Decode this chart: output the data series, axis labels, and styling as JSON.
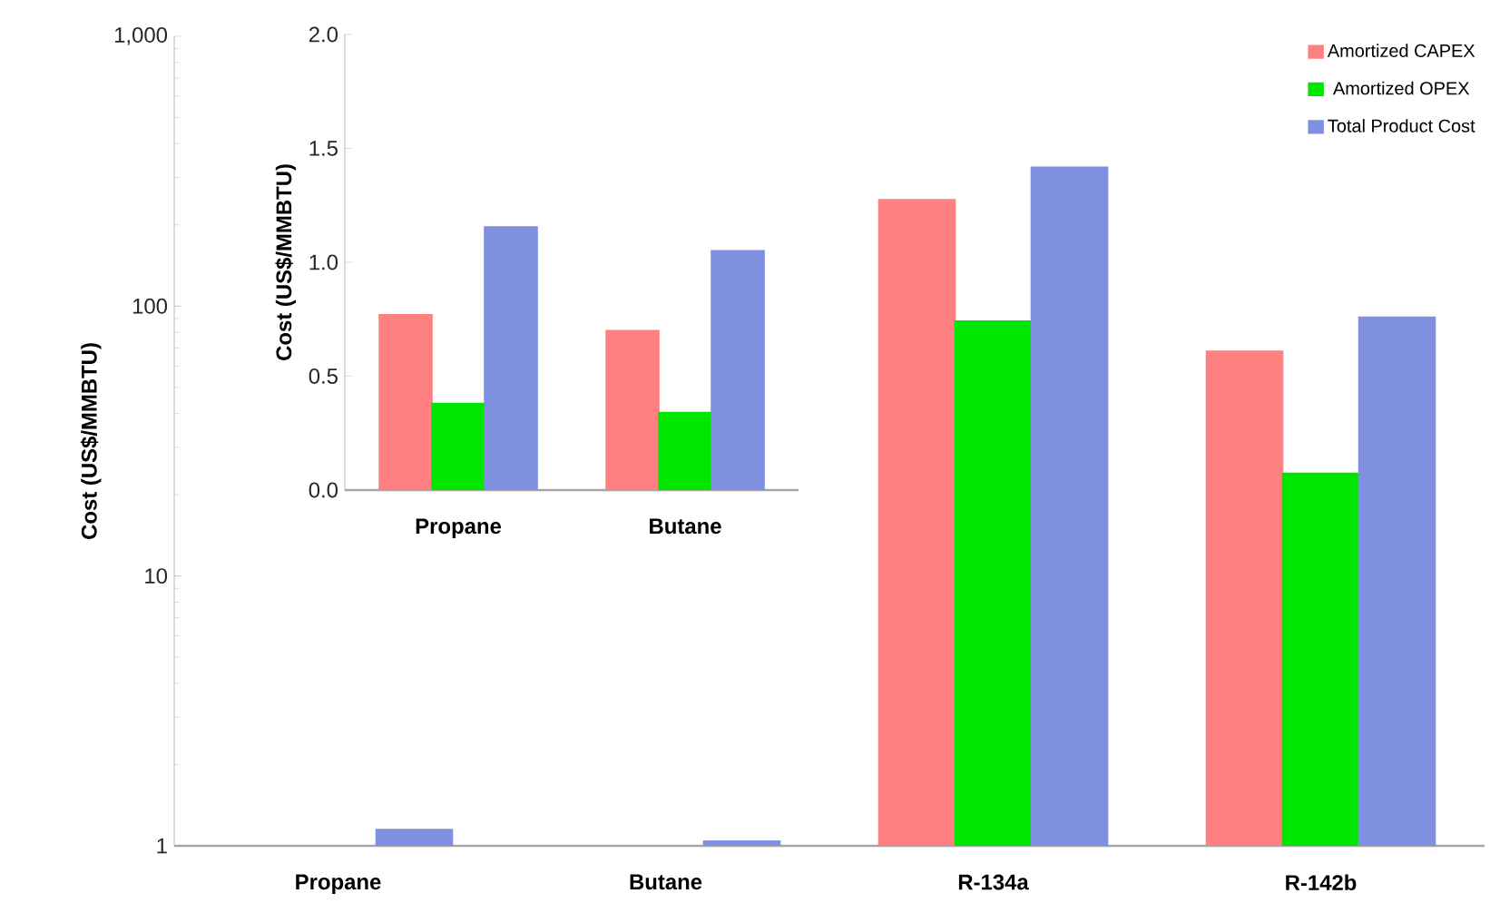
{
  "chart_data": [
    {
      "type": "bar",
      "ylabel": "Cost (US$/MMBTU)",
      "log": "y",
      "legend": "top right",
      "grid": false,
      "categories": [
        "Propane",
        "Butane",
        "R-134a",
        "R-142b"
      ],
      "ylim": [
        1,
        1000
      ],
      "yticks": [
        1,
        10,
        100,
        {
          "value": 1000,
          "label": "1,000"
        }
      ],
      "series": [
        {
          "name": "Amortized CAPEX",
          "color": "#ff8080",
          "values": [
            null,
            null,
            248,
            68
          ]
        },
        {
          "name": "Amortized OPEX",
          "color": "#00e600",
          "values": [
            null,
            null,
            88,
            24
          ]
        },
        {
          "name": "Total Product Cost",
          "color": "#7f90e0",
          "values": [
            1.15,
            1.04,
            327,
            91
          ]
        }
      ]
    },
    {
      "type": "bar",
      "ylabel": "Cost (US$/MMBTU)",
      "grid": false,
      "categories": [
        "Propane",
        "Butane"
      ],
      "ylim": [
        0,
        2
      ],
      "yticks": [
        {
          "value": 0,
          "label": "0.0"
        },
        0.5,
        {
          "value": 1,
          "label": "1.0"
        },
        1.5,
        {
          "value": 2,
          "label": "2.0"
        }
      ],
      "series": [
        {
          "color": "#ff8080",
          "values": [
            0.77,
            0.7
          ]
        },
        {
          "color": "#00e600",
          "values": [
            0.38,
            0.34
          ]
        },
        {
          "color": "#7f90e0",
          "values": [
            1.155,
            1.05
          ]
        }
      ]
    }
  ]
}
